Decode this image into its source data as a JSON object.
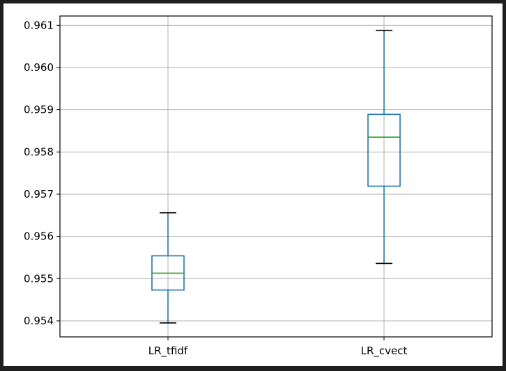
{
  "chart_data": {
    "type": "boxplot",
    "title": "",
    "xlabel": "",
    "ylabel": "",
    "grid": true,
    "ylim": [
      0.95362,
      0.96122
    ],
    "yticks": [
      0.954,
      0.955,
      0.956,
      0.957,
      0.958,
      0.959,
      0.96,
      0.961
    ],
    "ytick_labels": [
      "0.954",
      "0.955",
      "0.956",
      "0.957",
      "0.958",
      "0.959",
      "0.960",
      "0.961"
    ],
    "categories": [
      "LR_tfidf",
      "LR_cvect"
    ],
    "boxes": [
      {
        "label": "LR_tfidf",
        "whisker_low": 0.95395,
        "q1": 0.95473,
        "median": 0.95513,
        "q3": 0.95554,
        "whisker_high": 0.95656
      },
      {
        "label": "LR_cvect",
        "whisker_low": 0.95536,
        "q1": 0.95719,
        "median": 0.95835,
        "q3": 0.95889,
        "whisker_high": 0.96088
      }
    ],
    "colors": {
      "box": "#1f77b4",
      "median": "#2ca02c",
      "cap": "#000000",
      "grid": "#b0b0b0"
    }
  }
}
